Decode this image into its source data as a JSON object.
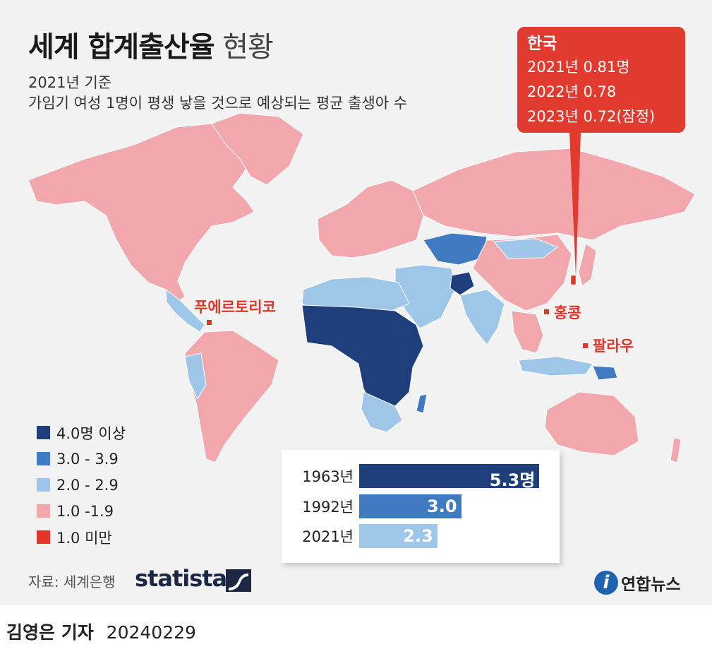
{
  "title_main": "세계 합계출산율",
  "title_sub": "현황",
  "subtitle_1": "2021년 기준",
  "subtitle_2": "가임기 여성 1명이 평생 낳을 것으로 예상되는 평균 출생아 수",
  "korea_callout": {
    "title": "한국",
    "lines": [
      "2021년 0.81명",
      "2022년 0.78",
      "2023년 0.72(잠정)"
    ]
  },
  "map_labels": {
    "puerto_rico": "푸에르토리코",
    "hong_kong": "홍콩",
    "palau": "팔라우"
  },
  "legend": [
    {
      "label": "4.0명 이상",
      "color": "#1f3e7c"
    },
    {
      "label": "3.0 - 3.9",
      "color": "#3f7ac2"
    },
    {
      "label": "2.0 - 2.9",
      "color": "#9ec6e8"
    },
    {
      "label": "1.0 -1.9",
      "color": "#f2a7ad"
    },
    {
      "label": "1.0 미만",
      "color": "#e0352b"
    }
  ],
  "chart_data": {
    "type": "bar",
    "categories": [
      "1963년",
      "1992년",
      "2021년"
    ],
    "values": [
      5.3,
      3.0,
      2.3
    ],
    "value_labels": [
      "5.3명",
      "3.0",
      "2.3"
    ],
    "colors": [
      "#1f3e7c",
      "#3f7ac2",
      "#9ec6e8"
    ],
    "xlim": [
      0,
      5.5
    ]
  },
  "source": "자료: 세계은행",
  "source_logo": "statista",
  "publisher": "연합뉴스",
  "publisher_icon": "yonhap-i-icon",
  "reporter": "김영은 기자",
  "date": "20240229"
}
